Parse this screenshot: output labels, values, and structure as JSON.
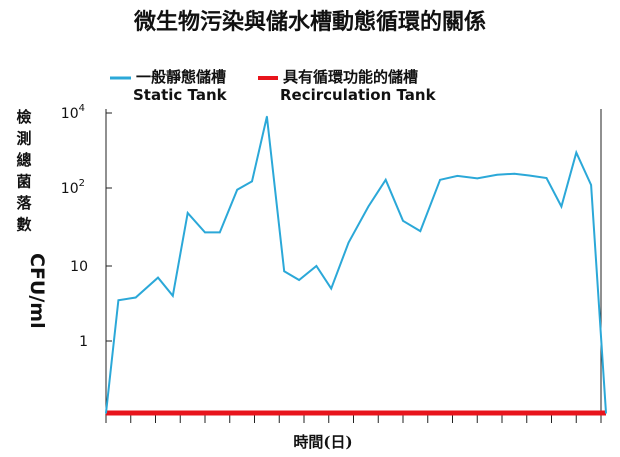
{
  "chart_data": {
    "type": "line",
    "title": "微生物污染與儲水槽動態循環的關係",
    "xlabel": "時間(日)",
    "ylabel": "檢測總菌落數",
    "ylabel_unit": "CFU/ml",
    "yscale": "log",
    "ylim": [
      0.1,
      10000
    ],
    "y_ticks": [
      {
        "value": 1,
        "label": "1"
      },
      {
        "value": 10,
        "label": "10"
      },
      {
        "value": 100,
        "label": "10",
        "exp": "2"
      },
      {
        "value": 10000,
        "label": "10",
        "exp": "4"
      }
    ],
    "x_tick_count": 21,
    "legend_position": "top-left",
    "grid": false,
    "x": [
      0,
      0.5,
      1.2,
      2.1,
      2.7,
      3.3,
      4.0,
      4.6,
      5.3,
      5.9,
      6.5,
      7.2,
      7.8,
      8.5,
      9.1,
      9.8,
      10.6,
      11.3,
      12.0,
      12.7,
      13.5,
      14.2,
      15.0,
      15.8,
      16.5,
      17.1,
      17.8,
      18.4,
      19.0,
      19.6,
      20.2
    ],
    "series": [
      {
        "name": "一般靜態儲槽",
        "name_en": "Static Tank",
        "color": "#2ba8d8",
        "values": [
          0.1,
          3.5,
          3.8,
          7,
          4,
          48,
          27,
          27,
          95,
          150,
          8000,
          8.5,
          6.5,
          10,
          5,
          20,
          58,
          165,
          38,
          28,
          165,
          210,
          180,
          225,
          240,
          215,
          185,
          58,
          880,
          120,
          0.1
        ]
      },
      {
        "name": "具有循環功能的儲槽",
        "name_en": "Recirculation Tank",
        "color": "#e8141c",
        "values": [
          0.1,
          0.1,
          0.1,
          0.1,
          0.1,
          0.1,
          0.1,
          0.1,
          0.1,
          0.1,
          0.1,
          0.1,
          0.1,
          0.1,
          0.1,
          0.1,
          0.1,
          0.1,
          0.1,
          0.1,
          0.1,
          0.1,
          0.1,
          0.1,
          0.1,
          0.1,
          0.1,
          0.1,
          0.1,
          0.1,
          0.1
        ]
      }
    ]
  }
}
